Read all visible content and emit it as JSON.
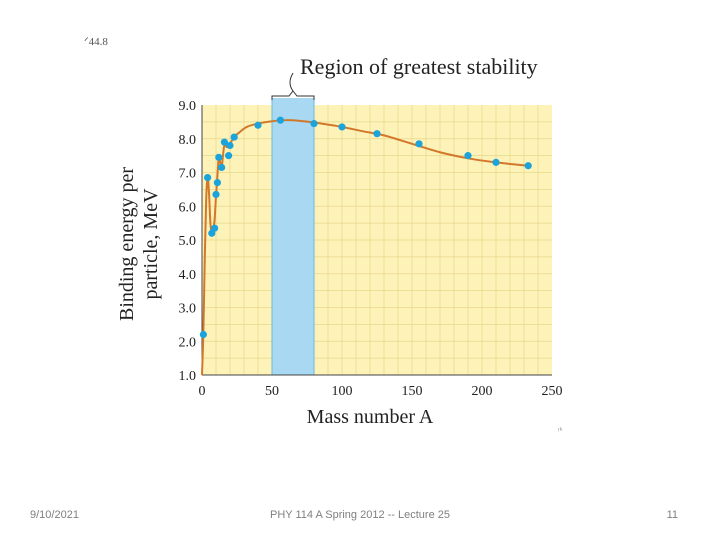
{
  "chart_data": {
    "type": "scatter",
    "title": "Region of greatest stability",
    "xlabel": "Mass number A",
    "ylabel_line1": "Binding energy per",
    "ylabel_line2": "particle, MeV",
    "xlim": [
      0,
      250
    ],
    "ylim": [
      1.0,
      9.0
    ],
    "x_ticks": [
      0,
      50,
      100,
      150,
      200,
      250
    ],
    "x_tick_labels": [
      "0",
      "50",
      "100",
      "150",
      "200",
      "250"
    ],
    "y_ticks": [
      1.0,
      2.0,
      3.0,
      4.0,
      5.0,
      6.0,
      7.0,
      8.0,
      9.0
    ],
    "y_tick_labels": [
      "1.0",
      "2.0",
      "3.0",
      "4.0",
      "5.0",
      "6.0",
      "7.0",
      "8.0",
      "9.0"
    ],
    "stability_region": {
      "x_start": 50,
      "x_end": 80
    },
    "points": {
      "x": [
        1,
        4,
        7,
        9,
        10,
        11,
        12,
        14,
        16,
        19,
        20,
        23,
        40,
        56,
        80,
        100,
        125,
        155,
        190,
        210,
        233
      ],
      "y": [
        2.2,
        6.85,
        5.2,
        5.35,
        6.35,
        6.7,
        7.45,
        7.15,
        7.9,
        7.5,
        7.8,
        8.05,
        8.4,
        8.55,
        8.45,
        8.35,
        8.15,
        7.85,
        7.5,
        7.3,
        7.2
      ]
    },
    "curve": {
      "x": [
        0,
        1,
        2,
        3,
        4,
        5,
        6,
        7,
        8,
        9,
        10,
        11,
        12,
        13,
        14,
        15,
        16,
        18,
        20,
        23,
        27,
        32,
        40,
        50,
        60,
        70,
        80,
        90,
        100,
        115,
        130,
        150,
        170,
        190,
        210,
        233
      ],
      "y": [
        1.0,
        2.3,
        4.5,
        6.2,
        6.85,
        6.4,
        5.5,
        5.2,
        5.3,
        5.6,
        6.3,
        6.9,
        7.45,
        7.3,
        7.15,
        7.5,
        7.8,
        7.75,
        7.85,
        8.05,
        8.2,
        8.35,
        8.45,
        8.52,
        8.55,
        8.53,
        8.48,
        8.42,
        8.35,
        8.22,
        8.1,
        7.85,
        7.6,
        7.42,
        7.3,
        7.2
      ]
    },
    "colors": {
      "plot_background": "#fdf2b8",
      "grid": "#e8d88a",
      "stability_band": "#a9d8f2",
      "curve": "#d2782b",
      "points": "#1ba3dc"
    }
  },
  "corner_text_top": "ᐟ44.8",
  "corner_text_bottom": "ᵎᵏ",
  "footer": {
    "date": "9/10/2021",
    "title": "PHY 114 A  Spring 2012 -- Lecture 25",
    "page": "11"
  }
}
